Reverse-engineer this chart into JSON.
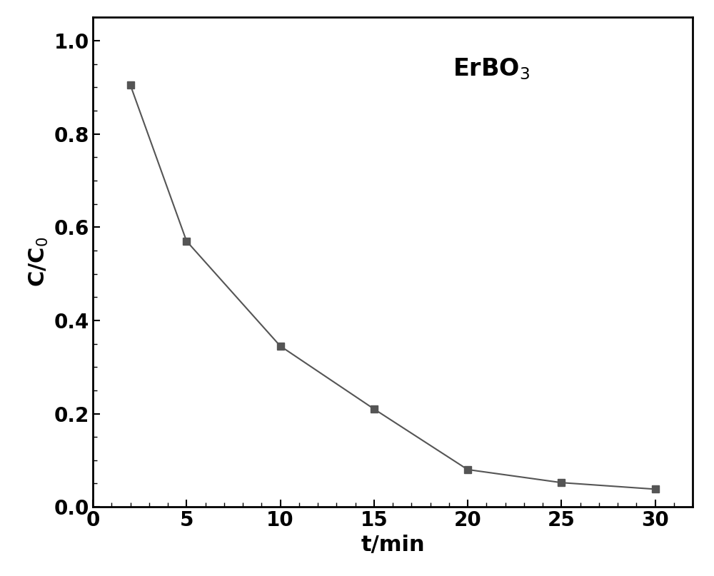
{
  "x": [
    2,
    5,
    10,
    15,
    20,
    25,
    30
  ],
  "y": [
    0.905,
    0.57,
    0.345,
    0.21,
    0.08,
    0.052,
    0.038
  ],
  "line_color": "#555555",
  "marker_color": "#555555",
  "marker": "s",
  "marker_size": 7,
  "line_width": 1.5,
  "xlabel": "t/min",
  "ylabel": "C/C$_0$",
  "xlim": [
    0,
    32
  ],
  "ylim": [
    0.0,
    1.05
  ],
  "xticks": [
    0,
    5,
    10,
    15,
    20,
    25,
    30
  ],
  "yticks": [
    0.0,
    0.2,
    0.4,
    0.6,
    0.8,
    1.0
  ],
  "xlabel_fontsize": 22,
  "ylabel_fontsize": 22,
  "tick_fontsize": 20,
  "annotation_fontsize": 24,
  "background_color": "#ffffff",
  "spine_linewidth": 2.0
}
